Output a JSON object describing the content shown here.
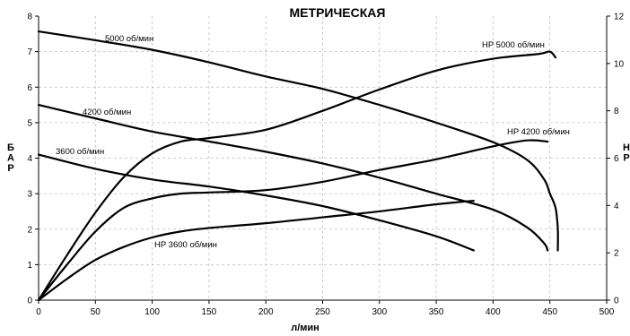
{
  "chart_data": {
    "type": "line",
    "title": "МЕТРИЧЕСКАЯ",
    "xlabel": "л/мин",
    "ylabel_left": "БАР",
    "ylabel_right": "HP",
    "xlim": [
      0,
      500
    ],
    "ylim_left": [
      0,
      8
    ],
    "ylim_right": [
      0,
      12
    ],
    "xticks": [
      "0",
      "50",
      "100",
      "150",
      "200",
      "250",
      "300",
      "350",
      "400",
      "450",
      "500"
    ],
    "yticks_left": [
      "0",
      "1",
      "2",
      "3",
      "4",
      "5",
      "6",
      "7",
      "8"
    ],
    "yticks_right": [
      "0",
      "2",
      "4",
      "6",
      "8",
      "10",
      "12"
    ],
    "grid": true,
    "series": [
      {
        "name": "5000 об/мин",
        "axis": "left",
        "points": [
          [
            0,
            7.57
          ],
          [
            50,
            7.32
          ],
          [
            100,
            7.05
          ],
          [
            150,
            6.7
          ],
          [
            200,
            6.3
          ],
          [
            250,
            5.95
          ],
          [
            300,
            5.5
          ],
          [
            350,
            5.0
          ],
          [
            400,
            4.45
          ],
          [
            430,
            3.95
          ],
          [
            445,
            3.4
          ],
          [
            450,
            3.0
          ],
          [
            455,
            2.6
          ],
          [
            457,
            2.0
          ],
          [
            457,
            1.4
          ]
        ]
      },
      {
        "name": "4200 об/мин",
        "axis": "left",
        "points": [
          [
            0,
            5.5
          ],
          [
            50,
            5.12
          ],
          [
            100,
            4.75
          ],
          [
            150,
            4.47
          ],
          [
            200,
            4.18
          ],
          [
            250,
            3.85
          ],
          [
            300,
            3.45
          ],
          [
            350,
            3.0
          ],
          [
            400,
            2.55
          ],
          [
            430,
            2.05
          ],
          [
            445,
            1.6
          ],
          [
            448,
            1.4
          ]
        ]
      },
      {
        "name": "3600 об/мин",
        "axis": "left",
        "points": [
          [
            0,
            4.1
          ],
          [
            50,
            3.7
          ],
          [
            100,
            3.4
          ],
          [
            150,
            3.2
          ],
          [
            200,
            2.95
          ],
          [
            250,
            2.65
          ],
          [
            300,
            2.25
          ],
          [
            350,
            1.8
          ],
          [
            383,
            1.4
          ]
        ]
      },
      {
        "name": "HP 5000 об/мин",
        "axis": "right",
        "points": [
          [
            0,
            0
          ],
          [
            25,
            1.9
          ],
          [
            50,
            3.7
          ],
          [
            75,
            5.2
          ],
          [
            100,
            6.2
          ],
          [
            125,
            6.7
          ],
          [
            150,
            6.85
          ],
          [
            200,
            7.2
          ],
          [
            250,
            8.0
          ],
          [
            300,
            8.9
          ],
          [
            350,
            9.7
          ],
          [
            400,
            10.2
          ],
          [
            440,
            10.4
          ],
          [
            450,
            10.5
          ],
          [
            455,
            10.25
          ]
        ]
      },
      {
        "name": "HP 4200 об/мин",
        "axis": "right",
        "points": [
          [
            0,
            0
          ],
          [
            25,
            1.5
          ],
          [
            50,
            2.9
          ],
          [
            75,
            3.9
          ],
          [
            100,
            4.3
          ],
          [
            125,
            4.5
          ],
          [
            150,
            4.55
          ],
          [
            200,
            4.65
          ],
          [
            250,
            5.0
          ],
          [
            300,
            5.5
          ],
          [
            350,
            5.95
          ],
          [
            400,
            6.5
          ],
          [
            430,
            6.75
          ],
          [
            448,
            6.7
          ]
        ]
      },
      {
        "name": "HP 3600 об/мин",
        "axis": "right",
        "points": [
          [
            0,
            0
          ],
          [
            25,
            0.9
          ],
          [
            50,
            1.7
          ],
          [
            75,
            2.25
          ],
          [
            100,
            2.65
          ],
          [
            125,
            2.9
          ],
          [
            150,
            3.05
          ],
          [
            200,
            3.25
          ],
          [
            250,
            3.5
          ],
          [
            300,
            3.75
          ],
          [
            350,
            4.05
          ],
          [
            383,
            4.2
          ]
        ]
      }
    ]
  }
}
